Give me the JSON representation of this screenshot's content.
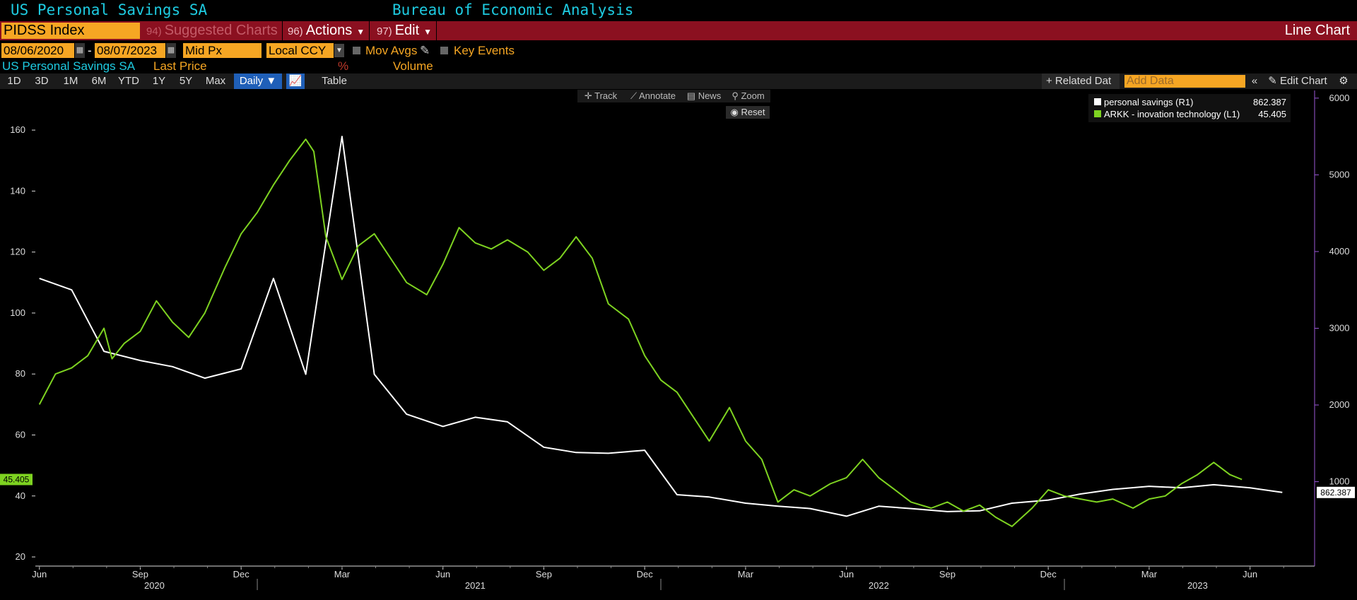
{
  "header": {
    "title": "US Personal Savings SA",
    "source": "Bureau of Economic Analysis"
  },
  "toolbar": {
    "ticker": "PIDSS Index",
    "suggested": {
      "num": "94)",
      "label": "Suggested Charts"
    },
    "actions": {
      "num": "96)",
      "label": "Actions"
    },
    "edit": {
      "num": "97)",
      "label": "Edit"
    },
    "chart_type": "Line Chart"
  },
  "controls": {
    "start_date": "08/06/2020",
    "end_date": "08/07/2023",
    "dash": "-",
    "price_field": "Mid Px",
    "currency": "Local CCY",
    "mov_avgs": "Mov Avgs",
    "key_events": "Key Events"
  },
  "legend_row": {
    "security": "US Personal Savings SA",
    "last_price": "Last Price",
    "percent": "%",
    "volume": "Volume"
  },
  "periods": [
    "1D",
    "3D",
    "1M",
    "6M",
    "YTD",
    "1Y",
    "5Y",
    "Max"
  ],
  "frequency": "Daily ▼",
  "table_label": "Table",
  "related_data": "+ Related Dat",
  "add_data_placeholder": "Add Data",
  "edit_chart": "Edit Chart",
  "tools": {
    "track": "Track",
    "annotate": "Annotate",
    "news": "News",
    "zoom": "Zoom",
    "reset": "Reset"
  },
  "colors": {
    "green": "#7ed321",
    "white": "#ffffff",
    "purple": "#9b59d9",
    "orange": "#f6a623"
  },
  "chart_data": {
    "type": "line",
    "x_axis": {
      "months": [
        "Jun",
        "Sep",
        "Dec",
        "Mar",
        "Jun",
        "Sep",
        "Dec",
        "Mar",
        "Jun",
        "Sep",
        "Dec",
        "Mar",
        "Jun"
      ],
      "years": [
        "2020",
        "2021",
        "2022",
        "2023"
      ]
    },
    "y_left": {
      "ticks": [
        20,
        40,
        60,
        80,
        100,
        120,
        140,
        160
      ],
      "range": [
        17,
        173
      ]
    },
    "y_right": {
      "ticks": [
        1000,
        2000,
        3000,
        4000,
        5000,
        6000
      ],
      "range": [
        -100,
        6100
      ]
    },
    "series": [
      {
        "name": "personal savings (R1)",
        "axis": "right",
        "last_value": "862.387",
        "color": "#ffffff",
        "points": [
          [
            2020.42,
            3650
          ],
          [
            2020.5,
            3500
          ],
          [
            2020.58,
            2700
          ],
          [
            2020.67,
            2580
          ],
          [
            2020.75,
            2500
          ],
          [
            2020.83,
            2350
          ],
          [
            2020.92,
            2470
          ],
          [
            2021.0,
            3650
          ],
          [
            2021.08,
            2400
          ],
          [
            2021.17,
            5500
          ],
          [
            2021.25,
            2400
          ],
          [
            2021.33,
            1880
          ],
          [
            2021.42,
            1720
          ],
          [
            2021.5,
            1840
          ],
          [
            2021.58,
            1780
          ],
          [
            2021.67,
            1450
          ],
          [
            2021.75,
            1380
          ],
          [
            2021.83,
            1370
          ],
          [
            2021.92,
            1410
          ],
          [
            2022.0,
            830
          ],
          [
            2022.08,
            800
          ],
          [
            2022.17,
            720
          ],
          [
            2022.25,
            680
          ],
          [
            2022.33,
            650
          ],
          [
            2022.42,
            550
          ],
          [
            2022.5,
            680
          ],
          [
            2022.58,
            650
          ],
          [
            2022.67,
            610
          ],
          [
            2022.75,
            620
          ],
          [
            2022.83,
            720
          ],
          [
            2022.92,
            760
          ],
          [
            2023.0,
            840
          ],
          [
            2023.08,
            900
          ],
          [
            2023.17,
            940
          ],
          [
            2023.25,
            920
          ],
          [
            2023.33,
            960
          ],
          [
            2023.42,
            920
          ],
          [
            2023.5,
            860
          ]
        ]
      },
      {
        "name": "ARKK - inovation technology (L1)",
        "axis": "left",
        "last_value": "45.405",
        "color": "#7ed321",
        "points": [
          [
            2020.42,
            70
          ],
          [
            2020.46,
            80
          ],
          [
            2020.5,
            82
          ],
          [
            2020.54,
            86
          ],
          [
            2020.58,
            95
          ],
          [
            2020.6,
            85
          ],
          [
            2020.63,
            90
          ],
          [
            2020.67,
            94
          ],
          [
            2020.71,
            104
          ],
          [
            2020.75,
            97
          ],
          [
            2020.79,
            92
          ],
          [
            2020.83,
            100
          ],
          [
            2020.88,
            115
          ],
          [
            2020.92,
            126
          ],
          [
            2020.96,
            133
          ],
          [
            2021.0,
            142
          ],
          [
            2021.04,
            150
          ],
          [
            2021.08,
            157
          ],
          [
            2021.1,
            153
          ],
          [
            2021.13,
            125
          ],
          [
            2021.17,
            111
          ],
          [
            2021.21,
            122
          ],
          [
            2021.25,
            126
          ],
          [
            2021.29,
            118
          ],
          [
            2021.33,
            110
          ],
          [
            2021.38,
            106
          ],
          [
            2021.42,
            116
          ],
          [
            2021.46,
            128
          ],
          [
            2021.5,
            123
          ],
          [
            2021.54,
            121
          ],
          [
            2021.58,
            124
          ],
          [
            2021.63,
            120
          ],
          [
            2021.67,
            114
          ],
          [
            2021.71,
            118
          ],
          [
            2021.75,
            125
          ],
          [
            2021.79,
            118
          ],
          [
            2021.83,
            103
          ],
          [
            2021.88,
            98
          ],
          [
            2021.92,
            86
          ],
          [
            2021.96,
            78
          ],
          [
            2022.0,
            74
          ],
          [
            2022.04,
            66
          ],
          [
            2022.08,
            58
          ],
          [
            2022.13,
            69
          ],
          [
            2022.17,
            58
          ],
          [
            2022.21,
            52
          ],
          [
            2022.25,
            38
          ],
          [
            2022.29,
            42
          ],
          [
            2022.33,
            40
          ],
          [
            2022.38,
            44
          ],
          [
            2022.42,
            46
          ],
          [
            2022.46,
            52
          ],
          [
            2022.5,
            46
          ],
          [
            2022.54,
            42
          ],
          [
            2022.58,
            38
          ],
          [
            2022.63,
            36
          ],
          [
            2022.67,
            38
          ],
          [
            2022.71,
            35
          ],
          [
            2022.75,
            37
          ],
          [
            2022.79,
            33
          ],
          [
            2022.83,
            30
          ],
          [
            2022.88,
            36
          ],
          [
            2022.92,
            42
          ],
          [
            2022.96,
            40
          ],
          [
            2023.0,
            39
          ],
          [
            2023.04,
            38
          ],
          [
            2023.08,
            39
          ],
          [
            2023.13,
            36
          ],
          [
            2023.17,
            39
          ],
          [
            2023.21,
            40
          ],
          [
            2023.25,
            44
          ],
          [
            2023.29,
            47
          ],
          [
            2023.33,
            51
          ],
          [
            2023.37,
            47
          ],
          [
            2023.4,
            45.4
          ]
        ]
      }
    ]
  }
}
